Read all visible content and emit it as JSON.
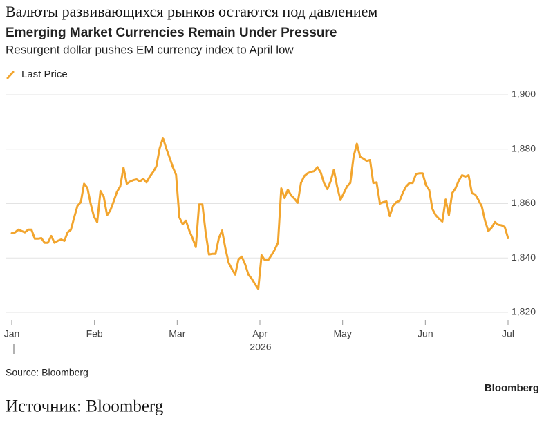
{
  "header_ru": "Валюты развивающихся рынков остаются под давлением",
  "footer_ru": "Источник: Bloomberg",
  "chart_data": {
    "type": "line",
    "title": "Emerging Market Currencies Remain Under Pressure",
    "subtitle": "Resurgent dollar pushes EM currency index to April low",
    "source": "Source: Bloomberg",
    "brand": "Bloomberg",
    "year_label": "2026",
    "x_tick_labels": [
      "Jan",
      "Feb",
      "Mar",
      "Apr",
      "May",
      "Jun",
      "Jul"
    ],
    "series": [
      {
        "name": "Last Price",
        "color": "#f2a52e",
        "values": [
          1849.1,
          1849.4,
          1850.4,
          1849.9,
          1849.4,
          1850.4,
          1850.4,
          1847.1,
          1847.1,
          1847.3,
          1845.6,
          1845.6,
          1848.1,
          1845.6,
          1846.3,
          1846.8,
          1846.3,
          1849.4,
          1850.4,
          1854.9,
          1859.2,
          1860.5,
          1867.3,
          1865.8,
          1860,
          1855.2,
          1853.2,
          1864.6,
          1862.5,
          1855.7,
          1857.5,
          1860.8,
          1864.3,
          1866.3,
          1873.2,
          1867.3,
          1868.1,
          1868.6,
          1868.9,
          1868.1,
          1869.1,
          1867.8,
          1869.9,
          1871.6,
          1873.7,
          1880.3,
          1884.1,
          1880.3,
          1877,
          1873.4,
          1870.6,
          1854.9,
          1852.4,
          1853.7,
          1850.1,
          1847.3,
          1844,
          1859.7,
          1859.7,
          1849.4,
          1841.3,
          1841.5,
          1841.5,
          1847.3,
          1850.1,
          1843.5,
          1838.2,
          1835.9,
          1833.9,
          1839.5,
          1840.5,
          1837.7,
          1833.9,
          1832.4,
          1830.4,
          1828.6,
          1841,
          1839.2,
          1839.2,
          1841,
          1843,
          1845.6,
          1865.6,
          1862,
          1865.1,
          1863,
          1861.8,
          1860.3,
          1867.6,
          1870.1,
          1871.1,
          1871.6,
          1871.9,
          1873.4,
          1871.4,
          1867.6,
          1865.3,
          1868.1,
          1872.4,
          1866.3,
          1861.3,
          1863.8,
          1866.3,
          1867.6,
          1877.2,
          1882,
          1877.2,
          1876.5,
          1875.7,
          1876,
          1867.6,
          1867.8,
          1860,
          1860.5,
          1860.8,
          1855.4,
          1859.2,
          1860.5,
          1861,
          1864,
          1866.3,
          1867.6,
          1867.6,
          1870.9,
          1871.1,
          1871.1,
          1866.8,
          1865,
          1858,
          1855.7,
          1854.4,
          1853.4,
          1861.5,
          1855.7,
          1863.8,
          1865.6,
          1868.4,
          1870.4,
          1869.9,
          1870.4,
          1863.8,
          1863.3,
          1861.3,
          1859,
          1853.7,
          1849.9,
          1851.1,
          1853.2,
          1852.2,
          1852,
          1851.4,
          1847.3
        ]
      }
    ],
    "ylim": [
      1820,
      1900
    ],
    "yticks": [
      {
        "value": 1820,
        "label": "1,820"
      },
      {
        "value": 1840,
        "label": "1,840"
      },
      {
        "value": 1860,
        "label": "1,860"
      },
      {
        "value": 1880,
        "label": "1,880"
      },
      {
        "value": 1900,
        "label": "1,900"
      }
    ],
    "grid": true
  }
}
